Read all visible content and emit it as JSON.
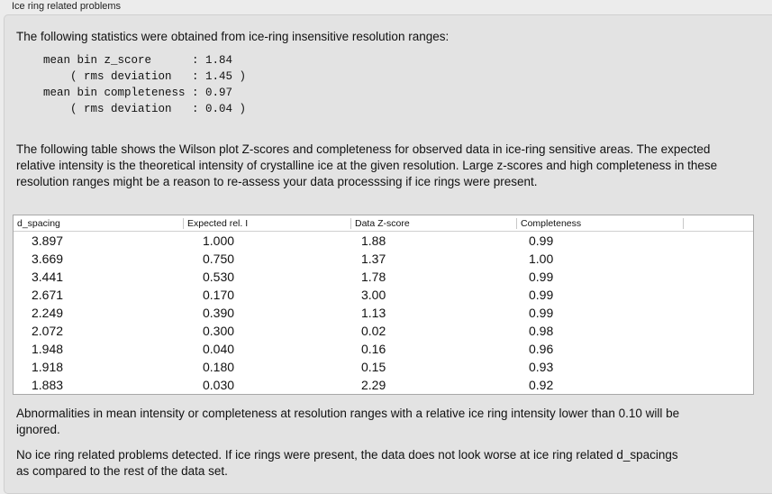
{
  "group_title": "Ice ring related problems",
  "intro": "The following statistics were obtained from ice-ring insensitive resolution ranges:",
  "stats": [
    "mean bin z_score      : 1.84",
    "    ( rms deviation   : 1.45 )",
    "mean bin completeness : 0.97",
    "    ( rms deviation   : 0.04 )"
  ],
  "table_desc": "The following table shows the Wilson plot Z-scores and completeness for observed data in ice-ring sensitive areas. The expected relative intensity is the theoretical intensity of crystalline ice at the given resolution. Large z-scores and high completeness in these resolution ranges might be a reason to re-assess your data processsing if ice rings were present.",
  "table": {
    "columns": [
      "d_spacing",
      "Expected rel. I",
      "Data Z-score",
      "Completeness"
    ],
    "rows": [
      [
        "3.897",
        "1.000",
        "1.88",
        "0.99"
      ],
      [
        "3.669",
        "0.750",
        "1.37",
        "1.00"
      ],
      [
        "3.441",
        "0.530",
        "1.78",
        "0.99"
      ],
      [
        "2.671",
        "0.170",
        "3.00",
        "0.99"
      ],
      [
        "2.249",
        "0.390",
        "1.13",
        "0.99"
      ],
      [
        "2.072",
        "0.300",
        "0.02",
        "0.98"
      ],
      [
        "1.948",
        "0.040",
        "0.16",
        "0.96"
      ],
      [
        "1.918",
        "0.180",
        "0.15",
        "0.93"
      ],
      [
        "1.883",
        "0.030",
        "2.29",
        "0.92"
      ]
    ]
  },
  "note": "Abnormalities in mean intensity or completeness at resolution ranges with a relative ice ring intensity lower than 0.10 will be ignored.",
  "conclusion": "No ice ring related problems detected. If ice rings were present, the data does not look worse at ice ring related d_spacings as compared to the rest of the data set."
}
